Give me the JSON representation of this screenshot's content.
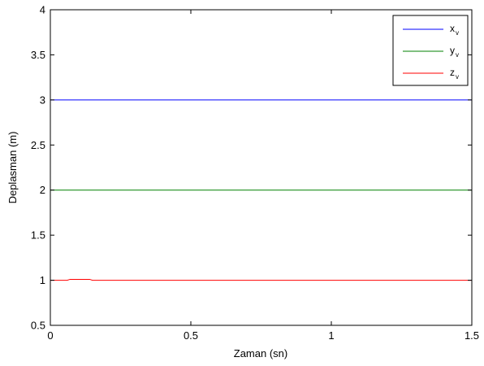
{
  "chart_data": {
    "type": "line",
    "xlabel": "Zaman (sn)",
    "ylabel": "Deplasman (m)",
    "xlim": [
      0,
      1.5
    ],
    "ylim": [
      0.5,
      4
    ],
    "x_ticks": [
      0,
      0.5,
      1,
      1.5
    ],
    "x_tick_labels": [
      "0",
      "0.5",
      "1",
      "1.5"
    ],
    "y_ticks": [
      0.5,
      1,
      1.5,
      2,
      2.5,
      3,
      3.5,
      4
    ],
    "y_tick_labels": [
      "0.5",
      "1",
      "1.5",
      "2",
      "2.5",
      "3",
      "3.5",
      "4"
    ],
    "grid": false,
    "legend_position": "top-right",
    "series": [
      {
        "name": "x_v",
        "label_main": "x",
        "label_sub": "v",
        "color": "#0000ff",
        "x": [
          0,
          1.5
        ],
        "y": [
          3,
          3
        ]
      },
      {
        "name": "y_v",
        "label_main": "y",
        "label_sub": "v",
        "color": "#008000",
        "x": [
          0,
          1.5
        ],
        "y": [
          2,
          2
        ]
      },
      {
        "name": "z_v",
        "label_main": "z",
        "label_sub": "v",
        "color": "#ff0000",
        "x": [
          0,
          0.06,
          0.07,
          0.14,
          0.15,
          1.5
        ],
        "y": [
          1,
          1,
          1.01,
          1.01,
          1,
          1
        ]
      }
    ]
  }
}
